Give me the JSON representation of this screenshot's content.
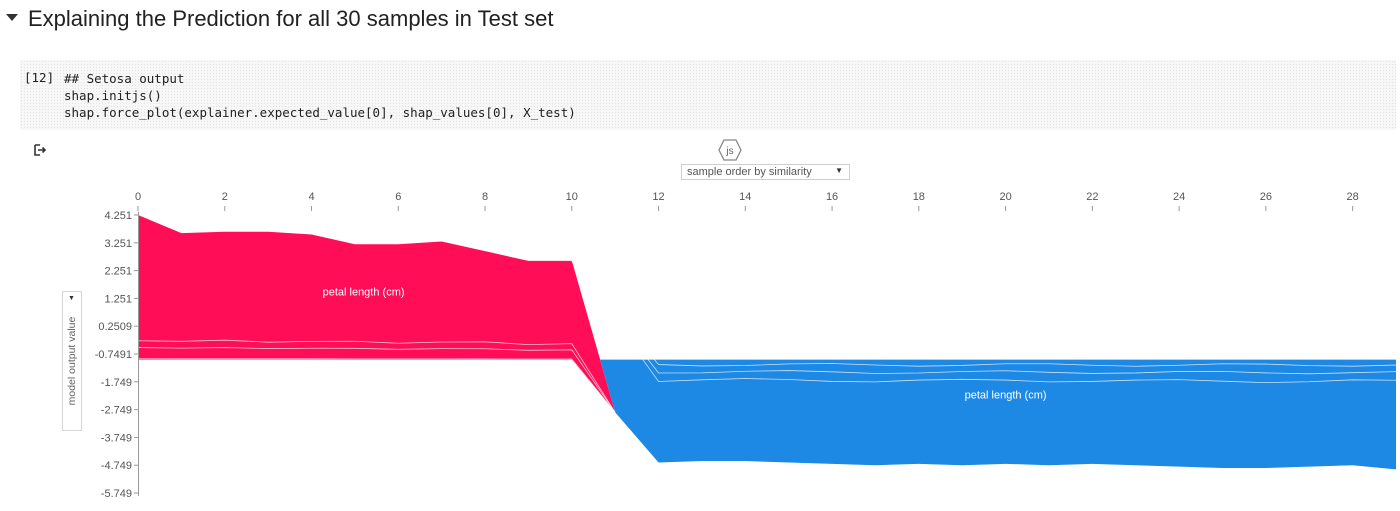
{
  "section": {
    "title": "Explaining the Prediction for all 30 samples in Test set"
  },
  "code_cell": {
    "execution_count": "[12]",
    "lines": [
      "## Setosa output",
      "shap.initjs()",
      "shap.force_plot(explainer.expected_value[0], shap_values[0], X_test)"
    ]
  },
  "output": {
    "js_badge": "js",
    "sample_order_select": "sample order by similarity",
    "y_select": "model output value"
  },
  "chart_data": {
    "type": "area",
    "title": "",
    "xlabel": "",
    "ylabel": "model output value",
    "x_ticks": [
      0,
      2,
      4,
      6,
      8,
      10,
      12,
      14,
      16,
      18,
      20,
      22,
      24,
      26,
      28
    ],
    "y_ticks": [
      "4.251",
      "3.251",
      "2.251",
      "1.251",
      "0.2509",
      "-0.7491",
      "-1.749",
      "-2.749",
      "-3.749",
      "-4.749",
      "-5.749"
    ],
    "y_tick_values": [
      4.251,
      3.251,
      2.251,
      1.251,
      0.2509,
      -0.7491,
      -1.749,
      -2.749,
      -3.749,
      -4.749,
      -5.749
    ],
    "xlim": [
      0,
      29
    ],
    "ylim": [
      -5.749,
      4.251
    ],
    "x": [
      0,
      1,
      2,
      3,
      4,
      5,
      6,
      7,
      8,
      9,
      10,
      11,
      12,
      13,
      14,
      15,
      16,
      17,
      18,
      19,
      20,
      21,
      22,
      23,
      24,
      25,
      26,
      27,
      28,
      29
    ],
    "model_output": [
      4.25,
      3.6,
      3.65,
      3.65,
      3.55,
      3.2,
      3.2,
      3.3,
      2.95,
      2.6,
      2.6,
      -2.85,
      -4.65,
      -4.6,
      -4.6,
      -4.65,
      -4.7,
      -4.75,
      -4.7,
      -4.75,
      -4.7,
      -4.75,
      -4.7,
      -4.75,
      -4.8,
      -4.85,
      -4.85,
      -4.8,
      -4.75,
      -4.9
    ],
    "base_value": -0.95,
    "positive_color": "#ff0d57",
    "negative_color": "#1e88e5",
    "area_labels": [
      {
        "text": "petal length (cm)",
        "x": 5.2,
        "y": 1.35
      },
      {
        "text": "petal length (cm)",
        "x": 20.0,
        "y": -2.35
      }
    ]
  }
}
